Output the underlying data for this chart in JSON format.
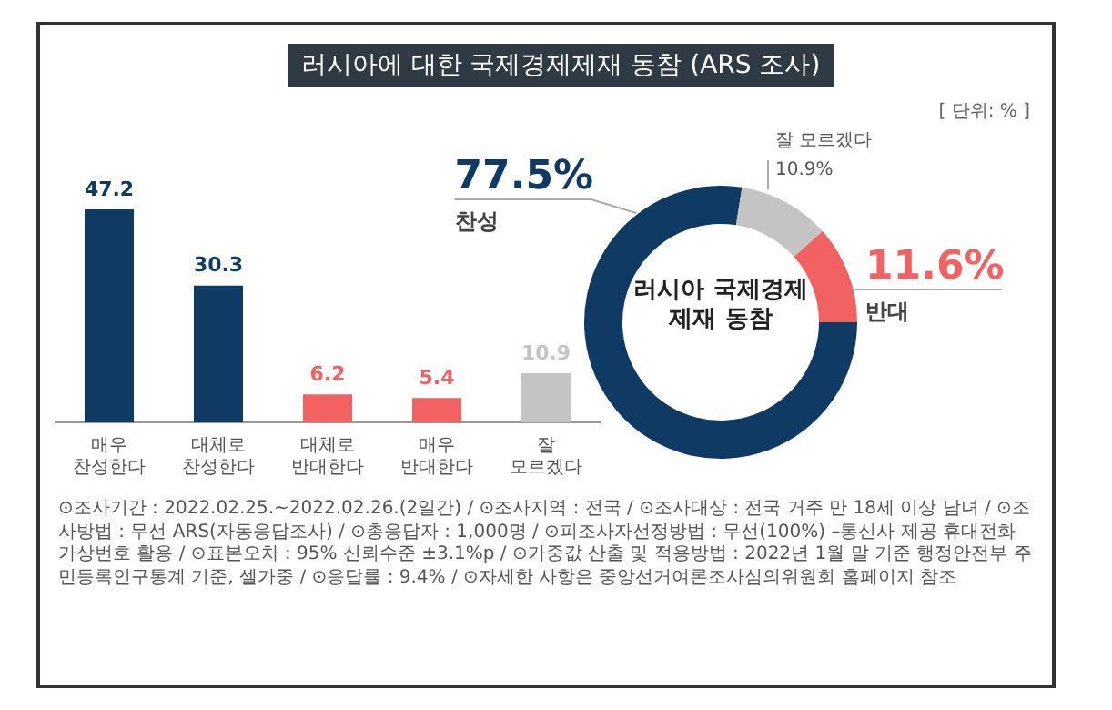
{
  "chart_data": [
    {
      "type": "bar",
      "title": "러시아에 대한 국제경제제재 동참 (ARS 조사)",
      "categories": [
        "매우 찬성한다",
        "대체로 찬성한다",
        "대체로 반대한다",
        "매우 반대한다",
        "잘 모르겠다"
      ],
      "values": [
        47.2,
        30.3,
        6.2,
        5.4,
        10.9
      ],
      "colors": [
        "#0f3a63",
        "#0f3a63",
        "#f26262",
        "#f26262",
        "#c4c4c4"
      ],
      "data_labels": true,
      "tick_labels": "x",
      "grid": false,
      "legend": false,
      "annotations": [
        "⊙조사기간 : 2022.02.25.~2022.02.26.(2일간) / ⊙조사지역 : 전국 / ⊙조사대상 : 전국 거주 만 18세 이상 남녀 / ⊙조사방법 : 무선 ARS(자동응답조사) / ⊙총응답자 : 1,000명 / ⊙피조사자선정방법 : 무선(100%) –통신사 제공 휴대전화 가상번호 활용 / ⊙표본오차 : 95% 신뢰수준 ±3.1%p / ⊙가중값 산출 및 적용방법 : 2022년 1월 말 기준 행정안전부 주민등록인구통계 기준, 셀가중 / ⊙응답률 : 9.4% / ⊙자세한 사항은 중앙선거여론조사심의위원회 홈페이지 참조"
      ]
    },
    {
      "type": "donut",
      "categories": [
        "찬성",
        "잘 모르겠다",
        "반대"
      ],
      "values": [
        77.5,
        10.9,
        11.6
      ],
      "colors": [
        "#0f3a63",
        "#c4c4c4",
        "#f26262"
      ],
      "value_labels": [
        "77.5%",
        "10.9%",
        "11.6%"
      ],
      "legend": false,
      "annotations": [
        "러시아 국제경제제재 동참",
        "[ 단위: % ]"
      ]
    }
  ]
}
